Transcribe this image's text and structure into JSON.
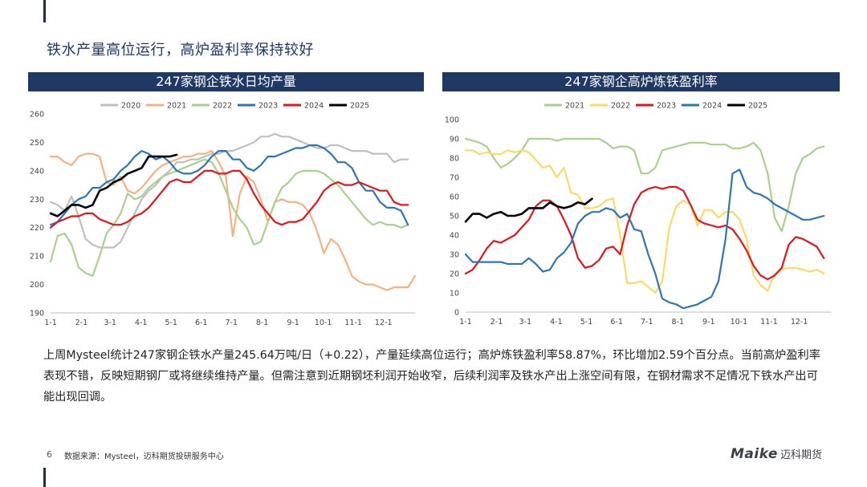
{
  "page": {
    "title": "铁水产量高位运行，高炉盈利率保持较好",
    "body_text": "上周Mysteel统计247家钢企铁水产量245.64万吨/日（+0.22），产量延续高位运行；高炉炼铁盈利率58.87%，环比增加2.59个百分点。当前高炉盈利率表现不错，反映短期钢厂或将继续维持产量。但需注意到近期钢坯利润开始收窄，后续利润率及铁水产出上涨空间有限，在钢材需求不足情况下铁水产出可能出现回调。",
    "page_number": "6",
    "source": "数据来源：Mysteel，迈科期货投研服务中心",
    "logo_text": "Maike",
    "logo_cn": "迈科期货"
  },
  "chart_data": [
    {
      "type": "line",
      "title": "247家钢企铁水日均产量",
      "ylim": [
        190,
        260
      ],
      "yticks": [
        190,
        200,
        210,
        220,
        230,
        240,
        250,
        260
      ],
      "xlim": [
        1,
        53
      ],
      "xtick_labels": [
        "1-1",
        "2-1",
        "3-1",
        "4-1",
        "5-1",
        "6-1",
        "7-1",
        "8-1",
        "9-1",
        "10-1",
        "11-1",
        "12-1"
      ],
      "xtick_weeks": [
        1,
        5.4,
        9.5,
        13.9,
        18.2,
        22.5,
        26.8,
        31.2,
        35.6,
        39.9,
        44.2,
        48.5
      ],
      "legend": "top",
      "series": [
        {
          "name": "2020",
          "color": "#bfbfbf",
          "x": [
            1,
            2,
            3,
            4,
            5,
            6,
            7,
            8,
            9,
            10,
            11,
            12,
            13,
            14,
            15,
            16,
            17,
            18,
            19,
            20,
            21,
            22,
            23,
            24,
            25,
            26,
            27,
            28,
            29,
            30,
            31,
            32,
            33,
            34,
            35,
            36,
            37,
            38,
            39,
            40,
            41,
            42,
            43,
            44,
            45,
            46,
            47,
            48,
            49,
            50,
            51,
            52
          ],
          "values": [
            229,
            228,
            226,
            231,
            224,
            216,
            214,
            213,
            213,
            213,
            215,
            220,
            225,
            230,
            233,
            235,
            238,
            240,
            243,
            243,
            244,
            244,
            245,
            246,
            246,
            247,
            247,
            248,
            249,
            250,
            252,
            252,
            253,
            252,
            252,
            251,
            250,
            249,
            248,
            248,
            249,
            249,
            248,
            247,
            247,
            247,
            246,
            246,
            246,
            243,
            244,
            244
          ]
        },
        {
          "name": "2021",
          "color": "#f4b183",
          "x": [
            1,
            2,
            3,
            4,
            5,
            6,
            7,
            8,
            9,
            10,
            11,
            12,
            13,
            14,
            15,
            16,
            17,
            18,
            19,
            20,
            21,
            22,
            23,
            24,
            25,
            26,
            27,
            28,
            29,
            30,
            31,
            32,
            33,
            34,
            35,
            36,
            37,
            38,
            39,
            40,
            41,
            42,
            43,
            44,
            45,
            46,
            47,
            48,
            49,
            50,
            51,
            52,
            53
          ],
          "values": [
            245,
            245,
            243,
            242,
            245,
            246,
            246,
            245,
            236,
            235,
            238,
            233,
            232,
            234,
            237,
            240,
            242,
            243,
            244,
            245,
            245,
            246,
            246,
            247,
            243,
            238,
            217,
            232,
            238,
            236,
            230,
            222,
            229,
            230,
            229,
            229,
            228,
            225,
            219,
            211,
            216,
            214,
            209,
            203,
            201,
            200,
            200,
            199,
            198,
            199,
            199,
            199,
            203
          ]
        },
        {
          "name": "2022",
          "color": "#a9d18e",
          "x": [
            1,
            2,
            3,
            4,
            5,
            6,
            7,
            8,
            9,
            10,
            11,
            12,
            13,
            14,
            15,
            16,
            17,
            18,
            19,
            20,
            21,
            22,
            23,
            24,
            25,
            26,
            27,
            28,
            29,
            30,
            31,
            32,
            33,
            34,
            35,
            36,
            37,
            38,
            39,
            40,
            41,
            42,
            43,
            44,
            45,
            46,
            47,
            48,
            49,
            50,
            51,
            52
          ],
          "values": [
            208,
            217,
            218,
            214,
            206,
            204,
            203,
            210,
            218,
            221,
            225,
            232,
            230,
            231,
            234,
            236,
            238,
            239,
            240,
            241,
            242,
            243,
            244,
            243,
            239,
            233,
            227,
            223,
            220,
            214,
            215,
            222,
            229,
            234,
            236,
            239,
            240,
            240,
            240,
            239,
            237,
            235,
            232,
            229,
            226,
            223,
            221,
            222,
            221,
            221,
            220,
            221
          ]
        },
        {
          "name": "2023",
          "color": "#2e75b6",
          "x": [
            1,
            2,
            3,
            4,
            5,
            6,
            7,
            8,
            9,
            10,
            11,
            12,
            13,
            14,
            15,
            16,
            17,
            18,
            19,
            20,
            21,
            22,
            23,
            24,
            25,
            26,
            27,
            28,
            29,
            30,
            31,
            32,
            33,
            34,
            35,
            36,
            37,
            38,
            39,
            40,
            41,
            42,
            43,
            44,
            45,
            46,
            47,
            48,
            49,
            50,
            51,
            52
          ],
          "values": [
            221,
            222,
            225,
            228,
            230,
            231,
            234,
            234,
            236,
            237,
            240,
            242,
            245,
            247,
            246,
            244,
            245,
            243,
            240,
            239,
            239,
            240,
            242,
            245,
            247,
            247,
            244,
            244,
            241,
            240,
            242,
            245,
            245,
            246,
            247,
            248,
            248,
            249,
            249,
            248,
            246,
            243,
            243,
            241,
            236,
            233,
            233,
            229,
            227,
            227,
            226,
            221
          ]
        },
        {
          "name": "2024",
          "color": "#e0161e",
          "x": [
            1,
            2,
            3,
            4,
            5,
            6,
            7,
            8,
            9,
            10,
            11,
            12,
            13,
            14,
            15,
            16,
            17,
            18,
            19,
            20,
            21,
            22,
            23,
            24,
            25,
            26,
            27,
            28,
            29,
            30,
            31,
            32,
            33,
            34,
            35,
            36,
            37,
            38,
            39,
            40,
            41,
            42,
            43,
            44,
            45,
            46,
            47,
            48,
            49,
            50,
            51,
            52
          ],
          "values": [
            220,
            222,
            223,
            224,
            224,
            225,
            225,
            223,
            222,
            221,
            221,
            222,
            224,
            225,
            227,
            230,
            233,
            236,
            237,
            236,
            236,
            238,
            240,
            240,
            239,
            239,
            240,
            240,
            237,
            232,
            228,
            225,
            222,
            221,
            222,
            222,
            223,
            226,
            229,
            233,
            235,
            236,
            235,
            235,
            236,
            235,
            234,
            233,
            233,
            229,
            228,
            228
          ]
        },
        {
          "name": "2025",
          "color": "#000000",
          "x": [
            1,
            2,
            3,
            4,
            5,
            6,
            7,
            8,
            9,
            10,
            11,
            12,
            13,
            14,
            15,
            16,
            17,
            18,
            19
          ],
          "values": [
            225,
            224,
            226,
            228,
            228,
            227,
            228,
            233,
            234,
            236,
            237,
            239,
            240,
            241,
            245,
            245,
            245,
            245,
            245.64
          ]
        }
      ]
    },
    {
      "type": "line",
      "title": "247家钢企高炉炼铁盈利率",
      "ylim": [
        0,
        100
      ],
      "yticks": [
        0,
        10,
        20,
        30,
        40,
        50,
        60,
        70,
        80,
        90,
        100
      ],
      "xlim": [
        1,
        53
      ],
      "xtick_labels": [
        "1-1",
        "2-1",
        "3-1",
        "4-1",
        "5-1",
        "6-1",
        "7-1",
        "8-1",
        "9-1",
        "10-1",
        "11-1",
        "12-1"
      ],
      "xtick_weeks": [
        1,
        5.4,
        9.5,
        13.9,
        18.2,
        22.5,
        26.8,
        31.2,
        35.6,
        39.9,
        44.2,
        48.5
      ],
      "legend": "top",
      "series": [
        {
          "name": "2021",
          "color": "#a9d18e",
          "x": [
            1,
            2,
            3,
            4,
            5,
            6,
            7,
            8,
            9,
            10,
            11,
            12,
            13,
            14,
            15,
            16,
            17,
            18,
            19,
            20,
            21,
            22,
            23,
            24,
            25,
            26,
            27,
            28,
            29,
            30,
            31,
            32,
            33,
            34,
            35,
            36,
            37,
            38,
            39,
            40,
            41,
            42,
            43,
            44,
            45,
            46,
            47,
            48,
            49,
            50,
            51,
            52
          ],
          "values": [
            90,
            89,
            88,
            86,
            80,
            75,
            77,
            80,
            84,
            90,
            90,
            90,
            90,
            89,
            90,
            90,
            90,
            90,
            90,
            90,
            88,
            85,
            86,
            86,
            84,
            72,
            72,
            75,
            84,
            85,
            86,
            87,
            88,
            88,
            88,
            87,
            87,
            87,
            85,
            85,
            86,
            88,
            84,
            72,
            49,
            42,
            55,
            72,
            80,
            82,
            85,
            86
          ]
        },
        {
          "name": "2022",
          "color": "#ffd966",
          "x": [
            1,
            2,
            3,
            4,
            5,
            6,
            7,
            8,
            9,
            10,
            11,
            12,
            13,
            14,
            15,
            16,
            17,
            18,
            19,
            20,
            21,
            22,
            23,
            24,
            25,
            26,
            27,
            28,
            29,
            30,
            31,
            32,
            33,
            34,
            35,
            36,
            37,
            38,
            39,
            40,
            41,
            42,
            43,
            44,
            45,
            46,
            47,
            48,
            49,
            50,
            51,
            52
          ],
          "values": [
            84,
            84,
            82,
            83,
            82,
            82,
            84,
            83,
            84,
            83,
            79,
            75,
            76,
            70,
            75,
            62,
            61,
            54,
            54,
            55,
            58,
            59,
            40,
            15,
            15,
            16,
            13,
            10,
            16,
            44,
            55,
            58,
            56,
            45,
            53,
            53,
            49,
            52,
            52,
            48,
            38,
            19,
            14,
            11,
            20,
            22,
            23,
            23,
            22,
            21,
            22,
            20
          ]
        },
        {
          "name": "2023",
          "color": "#e0161e",
          "x": [
            1,
            2,
            3,
            4,
            5,
            6,
            7,
            8,
            9,
            10,
            11,
            12,
            13,
            14,
            15,
            16,
            17,
            18,
            19,
            20,
            21,
            22,
            23,
            24,
            25,
            26,
            27,
            28,
            29,
            30,
            31,
            32,
            33,
            34,
            35,
            36,
            37,
            38,
            39,
            40,
            41,
            42,
            43,
            44,
            45,
            46,
            47,
            48,
            49,
            50,
            51,
            52
          ],
          "values": [
            20,
            22,
            27,
            33,
            37,
            36,
            38,
            40,
            44,
            48,
            55,
            58,
            58,
            55,
            48,
            40,
            28,
            23,
            24,
            27,
            33,
            34,
            30,
            45,
            56,
            62,
            64,
            65,
            64,
            65,
            65,
            63,
            56,
            48,
            46,
            45,
            44,
            45,
            43,
            38,
            32,
            24,
            19,
            17,
            19,
            23,
            35,
            39,
            38,
            36,
            34,
            28
          ]
        },
        {
          "name": "2024",
          "color": "#2e75b6",
          "x": [
            1,
            2,
            3,
            4,
            5,
            6,
            7,
            8,
            9,
            10,
            11,
            12,
            13,
            14,
            15,
            16,
            17,
            18,
            19,
            20,
            21,
            22,
            23,
            24,
            25,
            26,
            27,
            28,
            29,
            30,
            31,
            32,
            33,
            34,
            35,
            36,
            37,
            38,
            39,
            40,
            41,
            42,
            43,
            44,
            45,
            46,
            47,
            48,
            49,
            50,
            51,
            52
          ],
          "values": [
            30,
            26,
            26,
            26,
            26,
            26,
            25,
            25,
            25,
            28,
            25,
            21,
            22,
            28,
            31,
            36,
            46,
            50,
            52,
            52,
            54,
            53,
            49,
            51,
            43,
            42,
            30,
            20,
            7,
            5,
            4,
            2,
            3,
            4,
            6,
            8,
            16,
            38,
            72,
            74,
            65,
            62,
            61,
            59,
            56,
            54,
            52,
            50,
            48,
            48,
            49,
            50
          ]
        },
        {
          "name": "2025",
          "color": "#000000",
          "x": [
            1,
            2,
            3,
            4,
            5,
            6,
            7,
            8,
            9,
            10,
            11,
            12,
            13,
            14,
            15,
            16,
            17,
            18,
            19
          ],
          "values": [
            47,
            51,
            51,
            49,
            51,
            52,
            50,
            50,
            51,
            54,
            54,
            54,
            57,
            55,
            54,
            55,
            57,
            56,
            58.87
          ]
        }
      ]
    }
  ]
}
